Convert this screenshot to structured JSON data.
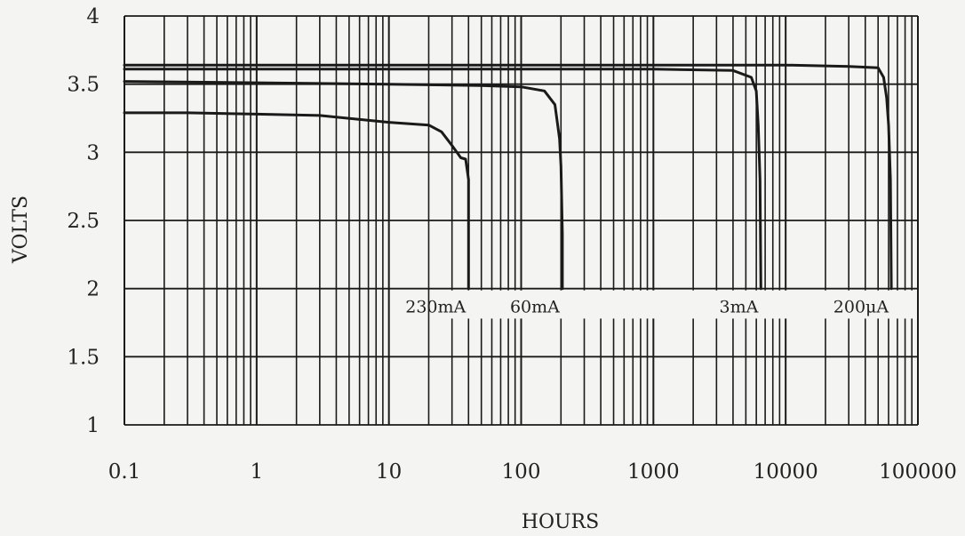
{
  "chart_data": {
    "type": "line",
    "xlabel": "HOURS",
    "ylabel": "VOLTS",
    "x_scale": "log",
    "xlim": [
      0.1,
      100000
    ],
    "ylim": [
      1,
      4
    ],
    "x_ticks": [
      "0.1",
      "1",
      "10",
      "100",
      "1000",
      "10000",
      "100000"
    ],
    "y_ticks": [
      "1",
      "1.5",
      "2",
      "2.5",
      "3",
      "3.5",
      "4"
    ],
    "grid": true,
    "series": [
      {
        "name": "230mA",
        "x": [
          0.1,
          0.3,
          1,
          3,
          10,
          20,
          25,
          30,
          35,
          38,
          40,
          40
        ],
        "y": [
          3.29,
          3.29,
          3.28,
          3.27,
          3.22,
          3.2,
          3.15,
          3.05,
          2.96,
          2.95,
          2.8,
          2.0
        ]
      },
      {
        "name": "60mA",
        "x": [
          0.1,
          1,
          10,
          50,
          100,
          150,
          180,
          195,
          200,
          205,
          205
        ],
        "y": [
          3.52,
          3.51,
          3.5,
          3.49,
          3.48,
          3.45,
          3.35,
          3.1,
          2.9,
          2.4,
          2.0
        ]
      },
      {
        "name": "3mA",
        "x": [
          0.1,
          10,
          1000,
          4000,
          5500,
          6000,
          6200,
          6400,
          6500
        ],
        "y": [
          3.61,
          3.61,
          3.61,
          3.6,
          3.55,
          3.45,
          3.2,
          2.8,
          2.0
        ]
      },
      {
        "name": "200μA",
        "x": [
          0.1,
          100,
          10000,
          30000,
          50000,
          55000,
          58000,
          60000,
          62000,
          63000
        ],
        "y": [
          3.64,
          3.64,
          3.64,
          3.63,
          3.62,
          3.55,
          3.4,
          3.2,
          2.8,
          2.0
        ]
      }
    ]
  }
}
